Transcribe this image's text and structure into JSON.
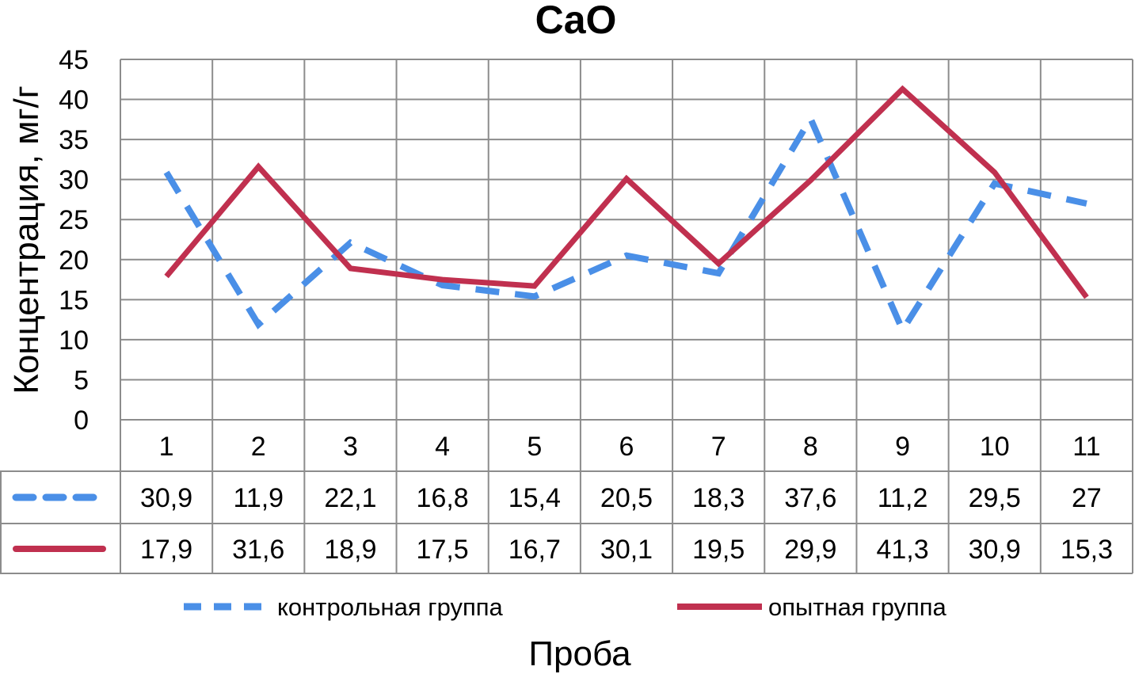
{
  "chart_data": {
    "type": "line",
    "title": "CaO",
    "xlabel": "Проба",
    "ylabel": "Концентрация, мг/г",
    "ylim": [
      0,
      45
    ],
    "yticks": [
      "0",
      "5",
      "10",
      "15",
      "20",
      "25",
      "30",
      "35",
      "40",
      "45"
    ],
    "categories": [
      "1",
      "2",
      "3",
      "4",
      "5",
      "6",
      "7",
      "8",
      "9",
      "10",
      "11"
    ],
    "grid": true,
    "legend_position": "bottom",
    "data_table": true,
    "series": [
      {
        "name": "контрольная группа",
        "color": "#4a8fe7",
        "line_style": "dashed",
        "values": [
          30.9,
          11.9,
          22.1,
          16.8,
          15.4,
          20.5,
          18.3,
          37.6,
          11.2,
          29.5,
          27
        ],
        "labels": [
          "30,9",
          "11,9",
          "22,1",
          "16,8",
          "15,4",
          "20,5",
          "18,3",
          "37,6",
          "11,2",
          "29,5",
          "27"
        ]
      },
      {
        "name": "опытная группа",
        "color": "#c0304f",
        "line_style": "solid",
        "values": [
          17.9,
          31.6,
          18.9,
          17.5,
          16.7,
          30.1,
          19.5,
          29.9,
          41.3,
          30.9,
          15.3
        ],
        "labels": [
          "17,9",
          "31,6",
          "18,9",
          "17,5",
          "16,7",
          "30,1",
          "19,5",
          "29,9",
          "41,3",
          "30,9",
          "15,3"
        ]
      }
    ]
  }
}
